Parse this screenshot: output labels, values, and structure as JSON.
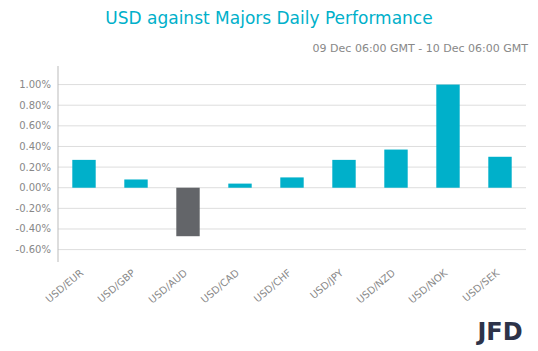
{
  "chart_data": {
    "type": "bar",
    "title": "USD against Majors Daily Performance",
    "subtitle": "09 Dec 06:00 GMT -  10 Dec  06:00 GMT",
    "categories": [
      "USD/EUR",
      "USD/GBP",
      "USD/AUD",
      "USD/CAD",
      "USD/CHF",
      "USD/JPY",
      "USD/NZD",
      "USD/NOK",
      "USD/SEK"
    ],
    "values": [
      0.27,
      0.08,
      -0.47,
      0.04,
      0.1,
      0.27,
      0.37,
      1.0,
      0.3
    ],
    "colors": [
      "#00b0ca",
      "#00b0ca",
      "#636569",
      "#00b0ca",
      "#00b0ca",
      "#00b0ca",
      "#00b0ca",
      "#00b0ca",
      "#00b0ca"
    ],
    "ylim": [
      -0.72,
      1.18
    ],
    "yticks": [
      {
        "value": -0.6,
        "label": "-0.60%"
      },
      {
        "value": -0.4,
        "label": "-0.40%"
      },
      {
        "value": -0.2,
        "label": "-0.20%"
      },
      {
        "value": 0,
        "label": "0.00%"
      },
      {
        "value": 0.2,
        "label": "0.20%"
      },
      {
        "value": 0.4,
        "label": "0.40%"
      },
      {
        "value": 0.6,
        "label": "0.60%"
      },
      {
        "value": 0.8,
        "label": "0.80%"
      },
      {
        "value": 1,
        "label": "1.00%"
      }
    ],
    "grid": true,
    "annotations": [
      "JFD"
    ]
  }
}
